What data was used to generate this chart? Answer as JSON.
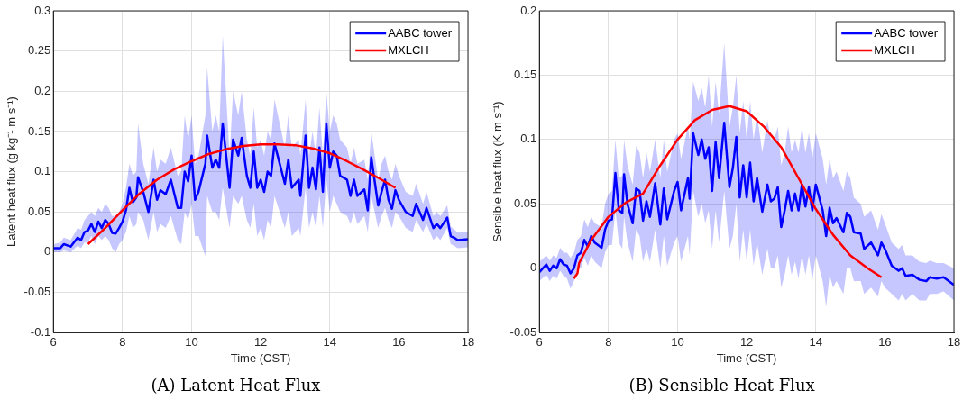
{
  "chart_data": [
    {
      "type": "line",
      "title": "(A) Latent Heat Flux",
      "xlabel": "Time (CST)",
      "ylabel": "Latent heat flux (g kg⁻¹ m s⁻¹)",
      "xlim": [
        6,
        18
      ],
      "xticks": [
        6,
        8,
        10,
        12,
        14,
        16,
        18
      ],
      "ylim": [
        -0.1,
        0.3
      ],
      "yticks": [
        -0.1,
        -0.05,
        0,
        0.05,
        0.1,
        0.15,
        0.2,
        0.25,
        0.3
      ],
      "grid": true,
      "legend": "top right",
      "series": [
        {
          "name": "AABC tower",
          "color": "#0000ff",
          "x": [
            6.0,
            6.2,
            6.3,
            6.5,
            6.7,
            6.8,
            6.9,
            7.0,
            7.1,
            7.2,
            7.3,
            7.4,
            7.5,
            7.6,
            7.7,
            7.8,
            7.9,
            8.0,
            8.1,
            8.2,
            8.3,
            8.4,
            8.45,
            8.6,
            8.75,
            8.9,
            9.0,
            9.1,
            9.25,
            9.4,
            9.6,
            9.7,
            9.8,
            9.9,
            10.0,
            10.1,
            10.2,
            10.4,
            10.45,
            10.6,
            10.7,
            10.8,
            10.9,
            11.1,
            11.2,
            11.35,
            11.45,
            11.6,
            11.7,
            11.8,
            11.9,
            12.0,
            12.1,
            12.2,
            12.3,
            12.4,
            12.55,
            12.7,
            12.8,
            12.9,
            13.1,
            13.15,
            13.3,
            13.4,
            13.5,
            13.6,
            13.7,
            13.8,
            13.9,
            14.0,
            14.1,
            14.2,
            14.3,
            14.5,
            14.6,
            14.7,
            14.8,
            15.0,
            15.1,
            15.2,
            15.4,
            15.5,
            15.6,
            15.7,
            15.8,
            15.9,
            16.0,
            16.2,
            16.4,
            16.5,
            16.7,
            16.8,
            17.0,
            17.1,
            17.2,
            17.4,
            17.5,
            17.6,
            17.7,
            18.0
          ],
          "values": [
            0.005,
            0.005,
            0.01,
            0.007,
            0.018,
            0.015,
            0.025,
            0.027,
            0.035,
            0.025,
            0.038,
            0.03,
            0.04,
            0.035,
            0.024,
            0.023,
            0.03,
            0.038,
            0.052,
            0.08,
            0.062,
            0.068,
            0.093,
            0.075,
            0.05,
            0.09,
            0.065,
            0.077,
            0.072,
            0.09,
            0.055,
            0.055,
            0.1,
            0.088,
            0.12,
            0.065,
            0.075,
            0.11,
            0.145,
            0.105,
            0.115,
            0.105,
            0.16,
            0.08,
            0.14,
            0.12,
            0.142,
            0.095,
            0.08,
            0.125,
            0.08,
            0.09,
            0.075,
            0.1,
            0.095,
            0.135,
            0.11,
            0.085,
            0.115,
            0.08,
            0.09,
            0.07,
            0.145,
            0.08,
            0.105,
            0.078,
            0.13,
            0.075,
            0.16,
            0.105,
            0.125,
            0.12,
            0.095,
            0.09,
            0.07,
            0.09,
            0.07,
            0.078,
            0.052,
            0.118,
            0.058,
            0.075,
            0.09,
            0.065,
            0.054,
            0.077,
            0.065,
            0.05,
            0.045,
            0.06,
            0.04,
            0.055,
            0.03,
            0.035,
            0.03,
            0.043,
            0.02,
            0.018,
            0.015,
            0.016
          ],
          "lower": [
            0,
            0,
            0.002,
            0,
            0.008,
            0.005,
            0.012,
            0.012,
            0.02,
            0.01,
            0.02,
            0.015,
            0.02,
            0.015,
            0.005,
            0,
            0.01,
            0.015,
            0.025,
            0.045,
            0.03,
            0.035,
            0.05,
            0.04,
            0.015,
            0.05,
            0.025,
            0.035,
            0.03,
            0.045,
            0.015,
            0.01,
            0.05,
            0.04,
            0.06,
            0.02,
            0.02,
            -0.005,
            0.07,
            0.05,
            0.05,
            0.04,
            0.08,
            0.03,
            0.07,
            0.06,
            0.07,
            0.04,
            0.03,
            0.06,
            0.02,
            0.03,
            0.015,
            0.04,
            0.03,
            0.07,
            0.05,
            0.03,
            0.05,
            0.02,
            0.03,
            0.02,
            0.08,
            0.03,
            0.05,
            0.03,
            0.07,
            0.03,
            0.09,
            0.05,
            0.07,
            0.06,
            0.05,
            0.045,
            0.035,
            0.05,
            0.035,
            0.045,
            0.025,
            0.07,
            0.03,
            0.045,
            0.055,
            0.04,
            0.03,
            0.05,
            0.045,
            0.03,
            0.025,
            0.04,
            0.025,
            0.035,
            0.015,
            0.02,
            0.015,
            0.03,
            0.01,
            0.008,
            0.005,
            0.006
          ],
          "upper": [
            0.01,
            0.012,
            0.018,
            0.015,
            0.03,
            0.028,
            0.04,
            0.045,
            0.05,
            0.045,
            0.055,
            0.05,
            0.06,
            0.055,
            0.045,
            0.045,
            0.05,
            0.06,
            0.08,
            0.11,
            0.095,
            0.1,
            0.16,
            0.11,
            0.085,
            0.13,
            0.1,
            0.115,
            0.11,
            0.13,
            0.095,
            0.1,
            0.17,
            0.14,
            0.17,
            0.11,
            0.12,
            0.17,
            0.23,
            0.15,
            0.17,
            0.15,
            0.27,
            0.12,
            0.2,
            0.17,
            0.2,
            0.14,
            0.12,
            0.18,
            0.13,
            0.14,
            0.12,
            0.15,
            0.14,
            0.19,
            0.16,
            0.13,
            0.17,
            0.13,
            0.14,
            0.12,
            0.19,
            0.12,
            0.15,
            0.12,
            0.18,
            0.12,
            0.2,
            0.15,
            0.17,
            0.16,
            0.14,
            0.13,
            0.11,
            0.13,
            0.11,
            0.115,
            0.09,
            0.15,
            0.09,
            0.11,
            0.12,
            0.1,
            0.09,
            0.11,
            0.095,
            0.075,
            0.07,
            0.085,
            0.06,
            0.075,
            0.045,
            0.05,
            0.045,
            0.058,
            0.032,
            0.028,
            0.025,
            0.025
          ]
        },
        {
          "name": "MXLCH",
          "color": "#ff0000",
          "x": [
            7.0,
            7.5,
            8.0,
            8.5,
            9.0,
            9.5,
            10.0,
            10.5,
            11.0,
            11.5,
            12.0,
            12.5,
            13.0,
            13.5,
            14.0,
            14.5,
            15.0,
            15.5,
            15.9
          ],
          "values": [
            0.01,
            0.03,
            0.052,
            0.073,
            0.09,
            0.103,
            0.113,
            0.122,
            0.128,
            0.132,
            0.134,
            0.134,
            0.133,
            0.129,
            0.123,
            0.113,
            0.102,
            0.09,
            0.08
          ]
        }
      ]
    },
    {
      "type": "line",
      "title": "(B) Sensible Heat Flux",
      "xlabel": "Time (CST)",
      "ylabel": "Sensible heat flux (K m s⁻¹)",
      "xlim": [
        6,
        18
      ],
      "xticks": [
        6,
        8,
        10,
        12,
        14,
        16,
        18
      ],
      "ylim": [
        -0.05,
        0.2
      ],
      "yticks": [
        -0.05,
        0,
        0.05,
        0.1,
        0.15,
        0.2
      ],
      "grid": true,
      "legend": "top right",
      "series": [
        {
          "name": "AABC tower",
          "color": "#0000ff",
          "x": [
            6.0,
            6.2,
            6.3,
            6.4,
            6.5,
            6.6,
            6.7,
            6.8,
            6.9,
            7.0,
            7.1,
            7.2,
            7.3,
            7.4,
            7.5,
            7.6,
            7.8,
            7.9,
            8.0,
            8.1,
            8.2,
            8.3,
            8.4,
            8.45,
            8.55,
            8.7,
            8.8,
            8.9,
            9.0,
            9.1,
            9.2,
            9.35,
            9.5,
            9.6,
            9.7,
            9.9,
            10.0,
            10.1,
            10.3,
            10.35,
            10.45,
            10.6,
            10.7,
            10.8,
            10.9,
            11.0,
            11.1,
            11.2,
            11.35,
            11.5,
            11.6,
            11.7,
            11.8,
            11.9,
            12.0,
            12.1,
            12.2,
            12.3,
            12.45,
            12.6,
            12.7,
            12.8,
            12.9,
            13.0,
            13.1,
            13.2,
            13.3,
            13.4,
            13.5,
            13.6,
            13.7,
            13.8,
            13.9,
            14.0,
            14.2,
            14.3,
            14.4,
            14.5,
            14.6,
            14.8,
            14.9,
            15.0,
            15.1,
            15.3,
            15.4,
            15.6,
            15.8,
            15.9,
            16.0,
            16.2,
            16.4,
            16.5,
            16.6,
            16.8,
            17.0,
            17.2,
            17.3,
            17.5,
            17.7,
            18.0
          ],
          "values": [
            -0.003,
            0.003,
            -0.002,
            0.002,
            0.0,
            0.007,
            0.003,
            0.002,
            -0.004,
            0.0,
            0.01,
            0.012,
            0.022,
            0.017,
            0.025,
            0.02,
            0.016,
            0.03,
            0.037,
            0.038,
            0.074,
            0.045,
            0.043,
            0.073,
            0.05,
            0.035,
            0.062,
            0.06,
            0.037,
            0.052,
            0.04,
            0.066,
            0.034,
            0.062,
            0.038,
            0.06,
            0.067,
            0.045,
            0.07,
            0.054,
            0.105,
            0.088,
            0.1,
            0.085,
            0.094,
            0.06,
            0.098,
            0.07,
            0.113,
            0.063,
            0.078,
            0.102,
            0.055,
            0.08,
            0.055,
            0.082,
            0.052,
            0.07,
            0.044,
            0.065,
            0.052,
            0.054,
            0.063,
            0.032,
            0.045,
            0.06,
            0.045,
            0.058,
            0.045,
            0.065,
            0.048,
            0.063,
            0.045,
            0.065,
            0.045,
            0.025,
            0.047,
            0.035,
            0.039,
            0.028,
            0.043,
            0.04,
            0.028,
            0.027,
            0.015,
            0.02,
            0.01,
            0.02,
            0.015,
            0.002,
            -0.002,
            0.0,
            -0.006,
            -0.005,
            -0.009,
            -0.01,
            -0.007,
            -0.008,
            -0.007,
            -0.013
          ],
          "lower": [
            -0.01,
            -0.005,
            -0.01,
            -0.006,
            -0.008,
            -0.002,
            -0.006,
            -0.008,
            -0.016,
            -0.01,
            0.0,
            0.0,
            0.008,
            0.002,
            0.01,
            0.005,
            0.0,
            0.012,
            0.018,
            0.018,
            0.045,
            0.02,
            0.015,
            0.04,
            0.02,
            0.005,
            0.03,
            0.025,
            0.005,
            0.015,
            0.005,
            0.03,
            0.0,
            0.025,
            0.002,
            0.02,
            0.025,
            0.005,
            0.025,
            0.01,
            0.06,
            0.04,
            0.05,
            0.035,
            0.045,
            0.015,
            0.045,
            0.02,
            0.06,
            0.015,
            0.025,
            0.05,
            0.005,
            0.03,
            0.005,
            0.03,
            0.002,
            0.02,
            -0.005,
            0.015,
            0.0,
            0.0,
            0.01,
            -0.015,
            -0.005,
            0.01,
            -0.005,
            0.005,
            -0.008,
            0.01,
            -0.005,
            0.01,
            -0.01,
            0.01,
            -0.01,
            -0.03,
            -0.005,
            -0.015,
            -0.01,
            -0.02,
            0.0,
            0.0,
            -0.01,
            -0.01,
            -0.02,
            -0.015,
            -0.022,
            -0.01,
            -0.015,
            -0.02,
            -0.025,
            -0.02,
            -0.025,
            -0.02,
            -0.025,
            -0.025,
            -0.02,
            -0.02,
            -0.018,
            -0.025
          ],
          "upper": [
            0.005,
            0.01,
            0.006,
            0.01,
            0.008,
            0.016,
            0.012,
            0.012,
            0.008,
            0.012,
            0.022,
            0.025,
            0.038,
            0.032,
            0.04,
            0.035,
            0.032,
            0.05,
            0.058,
            0.06,
            0.1,
            0.07,
            0.072,
            0.1,
            0.08,
            0.065,
            0.095,
            0.09,
            0.07,
            0.09,
            0.075,
            0.1,
            0.07,
            0.1,
            0.075,
            0.1,
            0.105,
            0.085,
            0.11,
            0.1,
            0.145,
            0.13,
            0.14,
            0.125,
            0.15,
            0.11,
            0.145,
            0.12,
            0.175,
            0.11,
            0.125,
            0.15,
            0.105,
            0.13,
            0.1,
            0.13,
            0.1,
            0.12,
            0.09,
            0.115,
            0.1,
            0.1,
            0.11,
            0.08,
            0.09,
            0.11,
            0.09,
            0.1,
            0.09,
            0.11,
            0.09,
            0.105,
            0.085,
            0.105,
            0.085,
            0.065,
            0.085,
            0.07,
            0.075,
            0.06,
            0.075,
            0.07,
            0.055,
            0.05,
            0.04,
            0.045,
            0.03,
            0.042,
            0.035,
            0.02,
            0.015,
            0.018,
            0.01,
            0.01,
            0.005,
            0.004,
            0.006,
            0.004,
            0.004,
            0.0
          ]
        },
        {
          "name": "MXLCH",
          "color": "#ff0000",
          "x": [
            7.0,
            7.1,
            7.15,
            7.5,
            8.0,
            8.5,
            9.0,
            9.5,
            10.0,
            10.5,
            11.0,
            11.5,
            12.0,
            12.5,
            13.0,
            13.5,
            14.0,
            14.5,
            15.0,
            15.5,
            15.9
          ],
          "values": [
            -0.008,
            -0.004,
            0.004,
            0.022,
            0.04,
            0.051,
            0.058,
            0.08,
            0.1,
            0.115,
            0.123,
            0.126,
            0.122,
            0.11,
            0.094,
            0.07,
            0.046,
            0.026,
            0.01,
            0.0,
            -0.007
          ]
        }
      ]
    }
  ]
}
